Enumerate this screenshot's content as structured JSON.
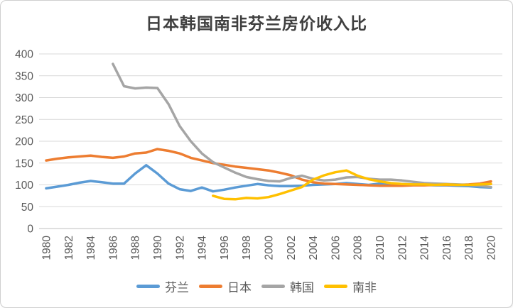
{
  "window": {
    "background_color": "#ffffff",
    "border_color": "#cfcfcf"
  },
  "chart_data": {
    "type": "line",
    "title": "日本韩国南非芬兰房价收入比",
    "xlabel": "",
    "ylabel": "",
    "ylim": [
      0,
      400
    ],
    "y_ticks": [
      0,
      50,
      100,
      150,
      200,
      250,
      300,
      350,
      400
    ],
    "x_tick_labels": [
      "1980",
      "1982",
      "1984",
      "1986",
      "1988",
      "1990",
      "1992",
      "1994",
      "1996",
      "1998",
      "2000",
      "2002",
      "2004",
      "2006",
      "2008",
      "2010",
      "2012",
      "2014",
      "2016",
      "2018",
      "2020"
    ],
    "x_range_years": [
      1980,
      2020
    ],
    "grid": "horizontal",
    "gridline_color": "#d9d9d9",
    "axis_line_color": "#bfbfbf",
    "tick_label_color": "#595959",
    "legend_position": "bottom",
    "series": [
      {
        "name": "芬兰",
        "color": "#5B9BD5",
        "start_year": 1980,
        "values": [
          92,
          96,
          100,
          105,
          109,
          106,
          103,
          103,
          126,
          145,
          126,
          103,
          90,
          86,
          94,
          85,
          89,
          94,
          98,
          102,
          99,
          97,
          97,
          98,
          100,
          101,
          102,
          104,
          102,
          100,
          103,
          103,
          102,
          101,
          100,
          99,
          99,
          98,
          97,
          95,
          94
        ]
      },
      {
        "name": "日本",
        "color": "#ED7D31",
        "start_year": 1980,
        "values": [
          156,
          160,
          163,
          165,
          167,
          164,
          162,
          165,
          172,
          174,
          182,
          178,
          172,
          162,
          156,
          150,
          146,
          142,
          139,
          136,
          133,
          128,
          122,
          112,
          106,
          103,
          102,
          101,
          100,
          99,
          98,
          98,
          98,
          99,
          99,
          100,
          100,
          100,
          101,
          103,
          108
        ]
      },
      {
        "name": "韩国",
        "color": "#A5A5A5",
        "start_year": 1986,
        "values": [
          377,
          326,
          321,
          323,
          322,
          285,
          235,
          200,
          172,
          152,
          140,
          128,
          118,
          113,
          109,
          108,
          116,
          121,
          114,
          110,
          112,
          117,
          118,
          114,
          112,
          112,
          110,
          107,
          104,
          103,
          102,
          101,
          100,
          98,
          95
        ]
      },
      {
        "name": "南非",
        "color": "#FFC000",
        "start_year": 1995,
        "values": [
          75,
          68,
          67,
          70,
          69,
          72,
          79,
          87,
          95,
          112,
          122,
          129,
          133,
          121,
          113,
          108,
          104,
          102,
          101,
          101,
          100,
          101,
          100,
          100,
          101,
          102
        ]
      }
    ]
  }
}
